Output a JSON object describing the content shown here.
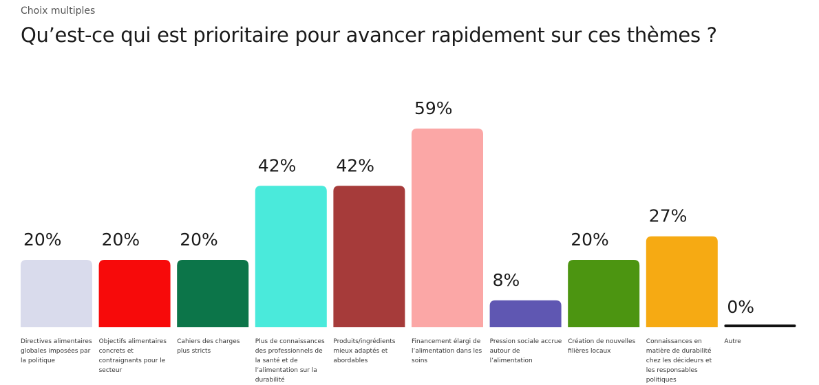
{
  "chart_data": {
    "type": "bar",
    "subtitle": "Choix multiples",
    "title": "Qu’est-ce qui est prioritaire pour avancer rapidement sur ces thèmes ?",
    "categories": [
      "Directives alimentaires globales imposées par la politique",
      "Objectifs alimentaires concrets et contraignants pour le secteur",
      "Cahiers des charges plus stricts",
      "Plus de connaissances des professionnels de la santé et de l’alimentation sur la durabilité",
      "Produits/ingrédients mieux adaptés et abordables",
      "Financement élargi de l’alimentation dans les soins",
      "Pression sociale accrue autour de l’alimentation",
      "Création de nouvelles filières locaux",
      "Connaissances en matière de durabilité chez les décideurs et les responsables politiques",
      "Autre"
    ],
    "values": [
      20,
      20,
      20,
      42,
      42,
      59,
      8,
      20,
      27,
      0
    ],
    "value_labels": [
      "20%",
      "20%",
      "20%",
      "42%",
      "42%",
      "59%",
      "8%",
      "20%",
      "27%",
      "0%"
    ],
    "colors": [
      "#d9dbec",
      "#f70a0a",
      "#0c7549",
      "#4aeadb",
      "#a63b3a",
      "#fba7a6",
      "#5f57b2",
      "#4c9511",
      "#f6aa13",
      "#111111"
    ]
  }
}
